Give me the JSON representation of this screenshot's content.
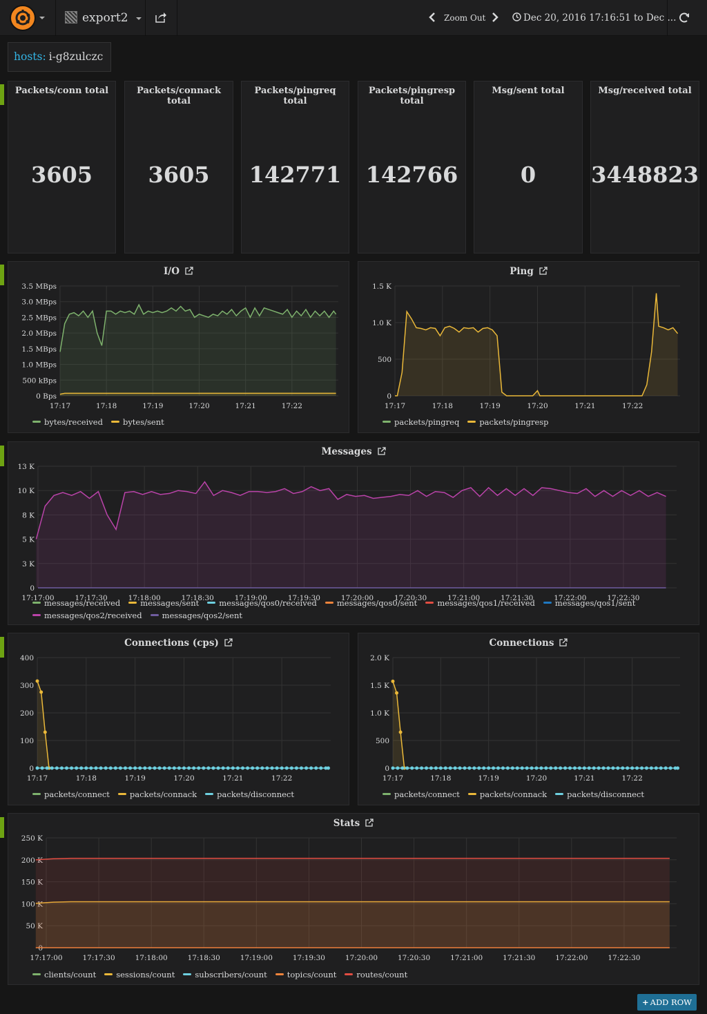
{
  "header": {
    "dashboard_title": "export2",
    "zoom_out": "Zoom Out",
    "time_range": "Dec 20, 2016 17:16:51 to Dec ..."
  },
  "template": {
    "label": "hosts:",
    "value": "i-g8zulczc"
  },
  "stats": [
    {
      "title": "Packets/conn total",
      "value": "3605"
    },
    {
      "title": "Packets/connack total",
      "value": "3605"
    },
    {
      "title": "Packets/pingreq total",
      "value": "142771"
    },
    {
      "title": "Packets/pingresp total",
      "value": "142766"
    },
    {
      "title": "Msg/sent total",
      "value": "0"
    },
    {
      "title": "Msg/received total",
      "value": "3448823"
    }
  ],
  "add_row": "ADD ROW",
  "colors": {
    "green": "#7eb26d",
    "yellow": "#eab839",
    "cyan": "#6ed0e0",
    "orange": "#ef843c",
    "red": "#e24d42",
    "blue": "#1f78c1",
    "magenta": "#ba43a9",
    "purple": "#705da0"
  },
  "chart_data": [
    {
      "id": "io",
      "type": "line",
      "title": "I/O",
      "y_ticks": [
        "3.5 MBps",
        "3.0 MBps",
        "2.5 MBps",
        "2.0 MBps",
        "1.5 MBps",
        "1.0 MBps",
        "500 kBps",
        "0 Bps"
      ],
      "x_ticks": [
        "17:17",
        "17:18",
        "17:19",
        "17:20",
        "17:21",
        "17:22"
      ],
      "ylim": [
        0,
        3.5
      ],
      "xlim": [
        0,
        6.0
      ],
      "series": [
        {
          "name": "bytes/received",
          "color": "#7eb26d",
          "fill": true,
          "x": [
            0,
            0.1,
            0.2,
            0.3,
            0.4,
            0.5,
            0.6,
            0.7,
            0.8,
            0.9,
            1.0,
            1.1,
            1.2,
            1.3,
            1.4,
            1.5,
            1.6,
            1.7,
            1.8,
            1.9,
            2.0,
            2.1,
            2.2,
            2.3,
            2.4,
            2.5,
            2.6,
            2.7,
            2.8,
            2.9,
            3.0,
            3.1,
            3.2,
            3.3,
            3.4,
            3.5,
            3.6,
            3.7,
            3.8,
            3.9,
            4.0,
            4.1,
            4.2,
            4.3,
            4.4,
            4.5,
            4.6,
            4.7,
            4.8,
            4.9,
            5.0,
            5.1,
            5.2,
            5.3,
            5.4,
            5.5,
            5.6,
            5.7,
            5.8,
            5.9,
            5.95
          ],
          "y": [
            1.4,
            2.3,
            2.6,
            2.65,
            2.55,
            2.7,
            2.5,
            2.7,
            2.0,
            1.6,
            2.7,
            2.7,
            2.6,
            2.7,
            2.65,
            2.7,
            2.6,
            2.9,
            2.6,
            2.7,
            2.65,
            2.7,
            2.65,
            2.7,
            2.8,
            2.7,
            2.85,
            2.7,
            2.75,
            2.5,
            2.6,
            2.55,
            2.5,
            2.6,
            2.55,
            2.7,
            2.6,
            2.75,
            2.55,
            2.7,
            2.8,
            2.5,
            2.8,
            2.55,
            2.8,
            2.75,
            2.7,
            2.65,
            2.6,
            2.75,
            2.5,
            2.7,
            2.55,
            2.75,
            2.5,
            2.7,
            2.55,
            2.7,
            2.5,
            2.7,
            2.6
          ]
        },
        {
          "name": "bytes/sent",
          "color": "#eab839",
          "fill": true,
          "x": [
            0,
            0.1,
            0.5,
            1.0,
            1.5,
            2.0,
            3.0,
            4.0,
            5.0,
            5.95
          ],
          "y": [
            0.05,
            0.08,
            0.08,
            0.08,
            0.08,
            0.08,
            0.08,
            0.08,
            0.08,
            0.08
          ]
        }
      ]
    },
    {
      "id": "ping",
      "type": "line",
      "title": "Ping",
      "y_ticks": [
        "1.5 K",
        "1.0 K",
        "500",
        "0"
      ],
      "x_ticks": [
        "17:17",
        "17:18",
        "17:19",
        "17:20",
        "17:21",
        "17:22"
      ],
      "ylim": [
        0,
        1500
      ],
      "xlim": [
        0,
        6.0
      ],
      "series": [
        {
          "name": "packets/pingreq",
          "color": "#7eb26d",
          "fill": false,
          "x": [],
          "y": []
        },
        {
          "name": "packets/pingresp",
          "color": "#eab839",
          "fill": true,
          "x": [
            0,
            0.05,
            0.15,
            0.25,
            0.35,
            0.45,
            0.55,
            0.65,
            0.75,
            0.85,
            0.95,
            1.05,
            1.15,
            1.25,
            1.35,
            1.45,
            1.55,
            1.65,
            1.75,
            1.85,
            1.95,
            2.05,
            2.15,
            2.25,
            2.35,
            2.5,
            2.6,
            2.7,
            2.9,
            3.0,
            3.05,
            3.15,
            3.3,
            3.5,
            4.0,
            4.5,
            5.0,
            5.2,
            5.3,
            5.4,
            5.5,
            5.55,
            5.65,
            5.75,
            5.85,
            5.95
          ],
          "y": [
            0,
            0,
            320,
            1150,
            1050,
            930,
            920,
            900,
            930,
            920,
            820,
            930,
            950,
            920,
            870,
            930,
            920,
            930,
            870,
            920,
            930,
            900,
            820,
            50,
            0,
            0,
            0,
            0,
            0,
            70,
            0,
            0,
            0,
            0,
            0,
            0,
            0,
            0,
            150,
            600,
            1400,
            950,
            930,
            900,
            930,
            850
          ]
        }
      ]
    },
    {
      "id": "messages",
      "type": "line",
      "title": "Messages",
      "y_ticks": [
        "13 K",
        "10 K",
        "8 K",
        "5 K",
        "3 K",
        "0"
      ],
      "x_ticks": [
        "17:17:00",
        "17:17:30",
        "17:18:00",
        "17:18:30",
        "17:19:00",
        "17:19:30",
        "17:20:00",
        "17:20:30",
        "17:21:00",
        "17:21:30",
        "17:22:00",
        "17:22:30"
      ],
      "ylim": [
        0,
        12500
      ],
      "xlim": [
        0,
        360
      ],
      "series": [
        {
          "name": "messages/received",
          "color": "#7eb26d",
          "fill": false,
          "x": [],
          "y": []
        },
        {
          "name": "messages/sent",
          "color": "#eab839",
          "fill": false,
          "x": [],
          "y": []
        },
        {
          "name": "messages/qos0/received",
          "color": "#6ed0e0",
          "fill": false,
          "x": [],
          "y": []
        },
        {
          "name": "messages/qos0/sent",
          "color": "#ef843c",
          "fill": false,
          "x": [],
          "y": []
        },
        {
          "name": "messages/qos1/received",
          "color": "#e24d42",
          "fill": false,
          "x": [],
          "y": []
        },
        {
          "name": "messages/qos1/sent",
          "color": "#1f78c1",
          "fill": false,
          "x": [],
          "y": []
        },
        {
          "name": "messages/qos2/received",
          "color": "#ba43a9",
          "fill": true,
          "x": [
            -1,
            4,
            9,
            14,
            19,
            24,
            29,
            34,
            39,
            44,
            49,
            54,
            59,
            64,
            69,
            74,
            79,
            84,
            89,
            94,
            99,
            104,
            109,
            114,
            119,
            124,
            129,
            134,
            139,
            144,
            149,
            154,
            159,
            164,
            169,
            174,
            179,
            184,
            189,
            194,
            199,
            204,
            209,
            214,
            219,
            224,
            229,
            234,
            239,
            244,
            249,
            254,
            259,
            264,
            269,
            274,
            279,
            284,
            289,
            294,
            299,
            304,
            309,
            314,
            319,
            324,
            329,
            334,
            339,
            344,
            349,
            354
          ],
          "y": [
            5000,
            8400,
            9500,
            9800,
            9500,
            9900,
            9200,
            9900,
            7500,
            6000,
            9800,
            9900,
            9600,
            9900,
            9600,
            9700,
            10000,
            9900,
            9700,
            10900,
            9500,
            10000,
            9800,
            9500,
            9900,
            9900,
            9800,
            9900,
            10200,
            9700,
            9900,
            10400,
            10000,
            10200,
            9100,
            9600,
            9400,
            9500,
            9200,
            9300,
            9400,
            9600,
            9500,
            10000,
            9400,
            9900,
            9800,
            9300,
            10000,
            10300,
            9400,
            10300,
            9500,
            10200,
            9500,
            10200,
            9500,
            10300,
            10200,
            10000,
            9800,
            9700,
            10200,
            9400,
            10000,
            9400,
            10000,
            9500,
            10000,
            9400,
            9800,
            9400
          ]
        },
        {
          "name": "messages/qos2/sent",
          "color": "#705da0",
          "fill": false,
          "x": [
            0,
            354
          ],
          "y": [
            0,
            0
          ]
        }
      ]
    },
    {
      "id": "cps",
      "type": "line",
      "title": "Connections (cps)",
      "y_ticks": [
        "400",
        "300",
        "200",
        "100",
        "0"
      ],
      "x_ticks": [
        "17:17",
        "17:18",
        "17:19",
        "17:20",
        "17:21",
        "17:22"
      ],
      "ylim": [
        0,
        400
      ],
      "xlim": [
        0,
        6.0
      ],
      "series": [
        {
          "name": "packets/connect",
          "color": "#7eb26d",
          "fill": false,
          "x": [],
          "y": []
        },
        {
          "name": "packets/connack",
          "color": "#eab839",
          "fill": true,
          "points": true,
          "x": [
            0,
            0.08,
            0.16,
            0.24
          ],
          "y": [
            315,
            275,
            130,
            0
          ]
        },
        {
          "name": "packets/disconnect",
          "color": "#6ed0e0",
          "fill": false,
          "points": true,
          "x": [
            0,
            0.1,
            0.2,
            0.3,
            0.4,
            0.5,
            0.6,
            0.7,
            0.8,
            0.9,
            1.0,
            1.1,
            1.2,
            1.3,
            1.4,
            1.5,
            1.6,
            1.7,
            1.8,
            1.9,
            2.0,
            2.1,
            2.2,
            2.3,
            2.4,
            2.5,
            2.6,
            2.7,
            2.8,
            2.9,
            3.0,
            3.1,
            3.2,
            3.3,
            3.4,
            3.5,
            3.6,
            3.7,
            3.8,
            3.9,
            4.0,
            4.1,
            4.2,
            4.3,
            4.4,
            4.5,
            4.6,
            4.7,
            4.8,
            4.9,
            5.0,
            5.1,
            5.2,
            5.3,
            5.4,
            5.5,
            5.6,
            5.7,
            5.8,
            5.9,
            5.95
          ],
          "y": [
            0,
            0,
            0,
            0,
            0,
            0,
            0,
            0,
            0,
            0,
            0,
            0,
            0,
            0,
            0,
            0,
            0,
            0,
            0,
            0,
            0,
            0,
            0,
            0,
            0,
            0,
            0,
            0,
            0,
            0,
            0,
            0,
            0,
            0,
            0,
            0,
            0,
            0,
            0,
            0,
            0,
            0,
            0,
            0,
            0,
            0,
            0,
            0,
            0,
            0,
            0,
            0,
            0,
            0,
            0,
            0,
            0,
            0,
            0,
            0,
            0
          ]
        }
      ]
    },
    {
      "id": "connections",
      "type": "line",
      "title": "Connections",
      "y_ticks": [
        "2.0 K",
        "1.5 K",
        "1.0 K",
        "500",
        "0"
      ],
      "x_ticks": [
        "17:17",
        "17:18",
        "17:19",
        "17:20",
        "17:21",
        "17:22"
      ],
      "ylim": [
        0,
        2000
      ],
      "xlim": [
        0,
        6.0
      ],
      "series": [
        {
          "name": "packets/connect",
          "color": "#7eb26d",
          "fill": false,
          "x": [],
          "y": []
        },
        {
          "name": "packets/connack",
          "color": "#eab839",
          "fill": true,
          "points": true,
          "x": [
            0,
            0.08,
            0.16,
            0.24
          ],
          "y": [
            1570,
            1360,
            650,
            0
          ]
        },
        {
          "name": "packets/disconnect",
          "color": "#6ed0e0",
          "fill": false,
          "points": true,
          "x": [
            0,
            0.1,
            0.2,
            0.3,
            0.4,
            0.5,
            0.6,
            0.7,
            0.8,
            0.9,
            1.0,
            1.1,
            1.2,
            1.3,
            1.4,
            1.5,
            1.6,
            1.7,
            1.8,
            1.9,
            2.0,
            2.1,
            2.2,
            2.3,
            2.4,
            2.5,
            2.6,
            2.7,
            2.8,
            2.9,
            3.0,
            3.1,
            3.2,
            3.3,
            3.4,
            3.5,
            3.6,
            3.7,
            3.8,
            3.9,
            4.0,
            4.1,
            4.2,
            4.3,
            4.4,
            4.5,
            4.6,
            4.7,
            4.8,
            4.9,
            5.0,
            5.1,
            5.2,
            5.3,
            5.4,
            5.5,
            5.6,
            5.7,
            5.8,
            5.9,
            5.95
          ],
          "y": [
            0,
            0,
            0,
            0,
            0,
            0,
            0,
            0,
            0,
            0,
            0,
            0,
            0,
            0,
            0,
            0,
            0,
            0,
            0,
            0,
            0,
            0,
            0,
            0,
            0,
            0,
            0,
            0,
            0,
            0,
            0,
            0,
            0,
            0,
            0,
            0,
            0,
            0,
            0,
            0,
            0,
            0,
            0,
            0,
            0,
            0,
            0,
            0,
            0,
            0,
            0,
            0,
            0,
            0,
            0,
            0,
            0,
            0,
            0,
            0,
            0
          ]
        }
      ]
    },
    {
      "id": "stats",
      "type": "line",
      "title": "Stats",
      "y_ticks": [
        "250 K",
        "200 K",
        "150 K",
        "100 K",
        "50 K",
        "0"
      ],
      "x_ticks": [
        "17:17:00",
        "17:17:30",
        "17:18:00",
        "17:18:30",
        "17:19:00",
        "17:19:30",
        "17:20:00",
        "17:20:30",
        "17:21:00",
        "17:21:30",
        "17:22:00",
        "17:22:30"
      ],
      "ylim": [
        0,
        250000
      ],
      "xlim": [
        0,
        360
      ],
      "series": [
        {
          "name": "clients/count",
          "color": "#7eb26d",
          "fill": false,
          "x": [],
          "y": []
        },
        {
          "name": "sessions/count",
          "color": "#eab839",
          "fill": true,
          "x": [
            -6,
            4,
            14,
            100,
            200,
            300,
            356
          ],
          "y": [
            101000,
            103500,
            104500,
            104500,
            104500,
            104500,
            104500
          ]
        },
        {
          "name": "subscribers/count",
          "color": "#6ed0e0",
          "fill": false,
          "x": [],
          "y": []
        },
        {
          "name": "topics/count",
          "color": "#ef843c",
          "fill": false,
          "x": [
            -6,
            356
          ],
          "y": [
            0,
            0
          ]
        },
        {
          "name": "routes/count",
          "color": "#e24d42",
          "fill": true,
          "x": [
            -6,
            4,
            14,
            100,
            200,
            300,
            356
          ],
          "y": [
            200000,
            202500,
            203500,
            203500,
            203500,
            203500,
            203500
          ]
        }
      ]
    }
  ]
}
